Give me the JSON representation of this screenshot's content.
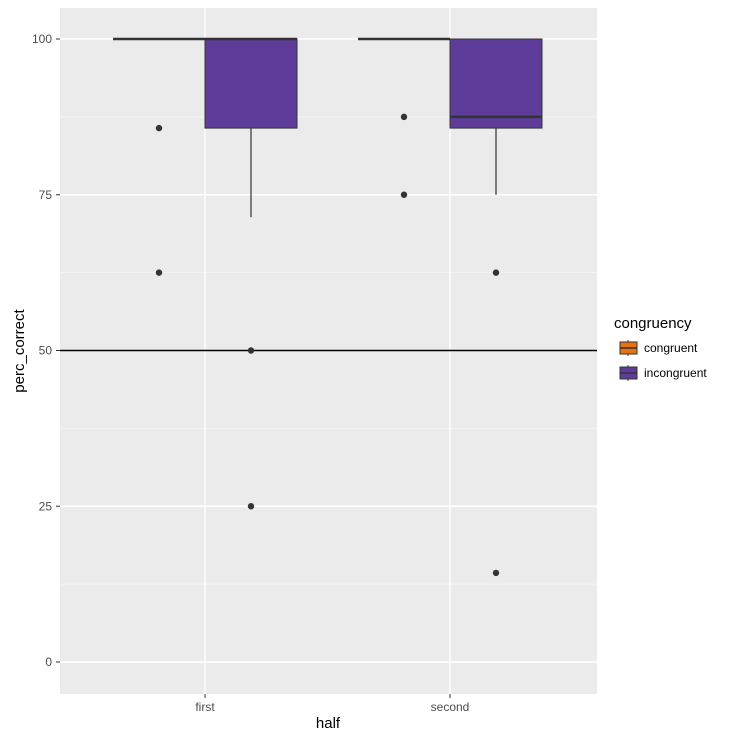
{
  "chart_data": {
    "type": "boxplot",
    "xlabel": "half",
    "ylabel": "perc_correct",
    "categories": [
      "first",
      "second"
    ],
    "ylim": [
      -5,
      105
    ],
    "yticks": [
      0,
      25,
      50,
      75,
      100
    ],
    "reference_line": 50,
    "grid": true,
    "legend_title": "congruency",
    "legend_position": "right",
    "series": [
      {
        "name": "congruent",
        "color": "#e6730f",
        "boxes": [
          {
            "category": "first",
            "q1": 100,
            "median": 100,
            "q3": 100,
            "whisker_low": 100,
            "whisker_high": 100,
            "outliers": [
              85.7,
              62.5
            ]
          },
          {
            "category": "second",
            "q1": 100,
            "median": 100,
            "q3": 100,
            "whisker_low": 100,
            "whisker_high": 100,
            "outliers": [
              87.5,
              75
            ]
          }
        ]
      },
      {
        "name": "incongruent",
        "color": "#5e3c99",
        "boxes": [
          {
            "category": "first",
            "q1": 85.7,
            "median": 100,
            "q3": 100,
            "whisker_low": 71.4,
            "whisker_high": 100,
            "outliers": [
              50,
              25
            ]
          },
          {
            "category": "second",
            "q1": 85.7,
            "median": 87.5,
            "q3": 100,
            "whisker_low": 75,
            "whisker_high": 100,
            "outliers": [
              62.5,
              14.3
            ]
          }
        ]
      }
    ]
  }
}
